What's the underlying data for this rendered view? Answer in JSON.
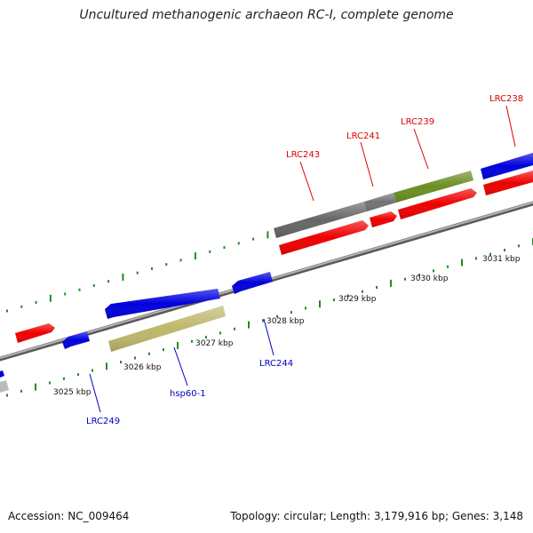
{
  "title": "Uncultured methanogenic archaeon RC-I, complete genome",
  "footer": {
    "accession": "Accession: NC_009464",
    "topology": "Topology: circular; Length: 3,179,916 bp; Genes: 3,148"
  },
  "colors": {
    "forward_gene": "#ee0000",
    "reverse_gene": "#0000dd",
    "grey_gene": "#707070",
    "olive_gene": "#6b8e23",
    "khaki_gene": "#bdb76b",
    "backbone": "#888888",
    "tick": "#228b22",
    "red_label": "#dd0000",
    "blue_label": "#0000bb"
  },
  "kbp_labels": [
    {
      "text": "3025 kbp"
    },
    {
      "text": "3026 kbp"
    },
    {
      "text": "3027 kbp"
    },
    {
      "text": "3028 kbp"
    },
    {
      "text": "3029 kbp"
    },
    {
      "text": "3030 kbp"
    },
    {
      "text": "3031 kbp"
    }
  ],
  "gene_labels": [
    {
      "text": "LRC238",
      "strand": "forward"
    },
    {
      "text": "LRC239",
      "strand": "forward"
    },
    {
      "text": "LRC241",
      "strand": "forward"
    },
    {
      "text": "LRC243",
      "strand": "forward"
    },
    {
      "text": "LRC244",
      "strand": "reverse"
    },
    {
      "text": "hsp60-1",
      "strand": "reverse"
    },
    {
      "text": "LRC249",
      "strand": "reverse"
    }
  ]
}
